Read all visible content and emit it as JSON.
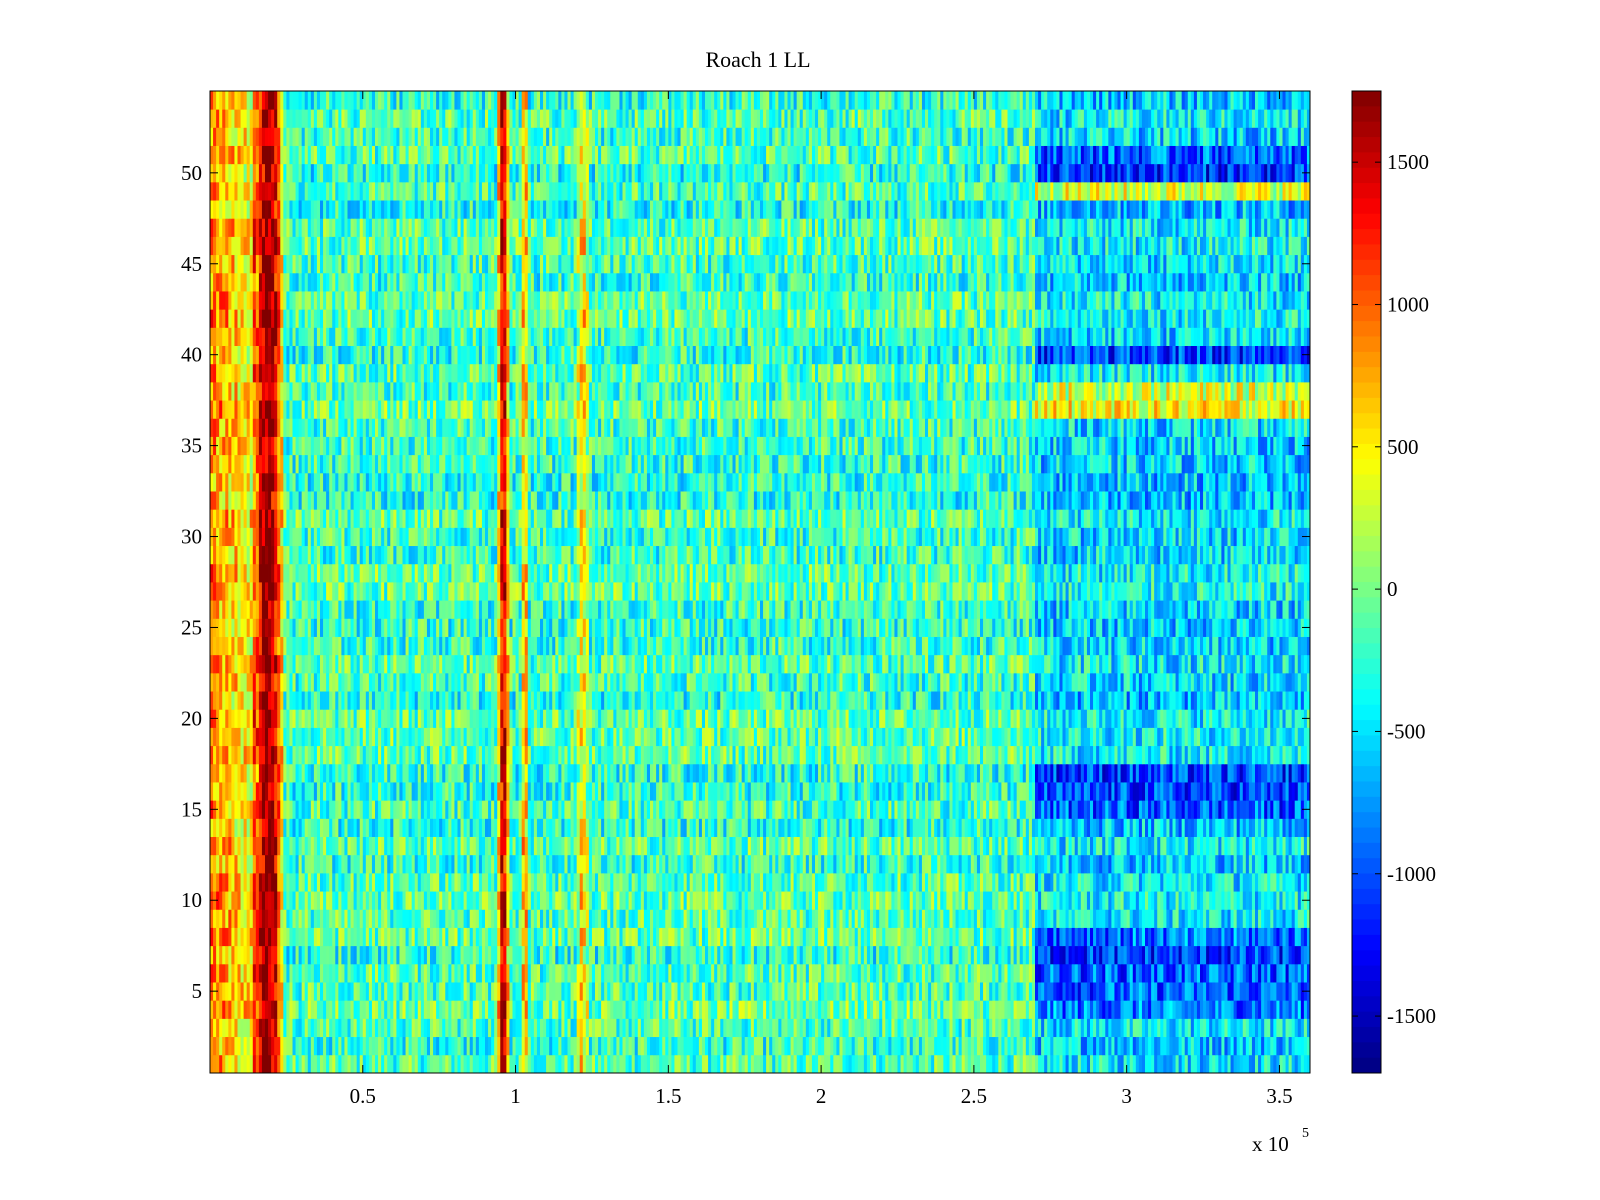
{
  "chart_data": {
    "type": "heatmap",
    "title": "Roach 1 LL",
    "xlabel": "",
    "ylabel": "",
    "x_multiplier": {
      "base": "x 10",
      "exponent": "5"
    },
    "xlim": [
      0,
      3.6
    ],
    "ylim": [
      0.5,
      54.5
    ],
    "x_ticks": [
      0.5,
      1,
      1.5,
      2,
      2.5,
      3,
      3.5
    ],
    "x_tick_labels": [
      "0.5",
      "1",
      "1.5",
      "2",
      "2.5",
      "3",
      "3.5"
    ],
    "y_ticks": [
      5,
      10,
      15,
      20,
      25,
      30,
      35,
      40,
      45,
      50
    ],
    "y_tick_labels": [
      "5",
      "10",
      "15",
      "20",
      "25",
      "30",
      "35",
      "40",
      "45",
      "50"
    ],
    "rows": 54,
    "colormap": "jet",
    "clim": [
      -1700,
      1750
    ],
    "colorbar": {
      "ticks": [
        -1500,
        -1000,
        -500,
        0,
        500,
        1000,
        1500
      ],
      "tick_labels": [
        "-1500",
        "-1000",
        "-500",
        "0",
        "500",
        "1000",
        "1500"
      ],
      "position": "right"
    },
    "features": {
      "vertical_bands": [
        {
          "x": 0.19,
          "width": 0.08,
          "value": 1700
        },
        {
          "x": 0.96,
          "width": 0.03,
          "value": 1400
        },
        {
          "x": 1.03,
          "width": 0.02,
          "value": 700
        },
        {
          "x": 1.22,
          "width": 0.03,
          "value": 500
        }
      ],
      "left_edge": {
        "x_range": [
          0,
          0.15
        ],
        "value": 900
      },
      "low_region": {
        "x_range": [
          2.7,
          3.6
        ],
        "value": -700
      },
      "strong_low_rows": [
        4,
        5,
        6,
        7,
        8,
        15,
        16,
        17,
        40,
        50,
        51
      ],
      "high_rows_right": [
        37,
        38,
        49
      ],
      "baseline": -200
    },
    "grid": false
  }
}
